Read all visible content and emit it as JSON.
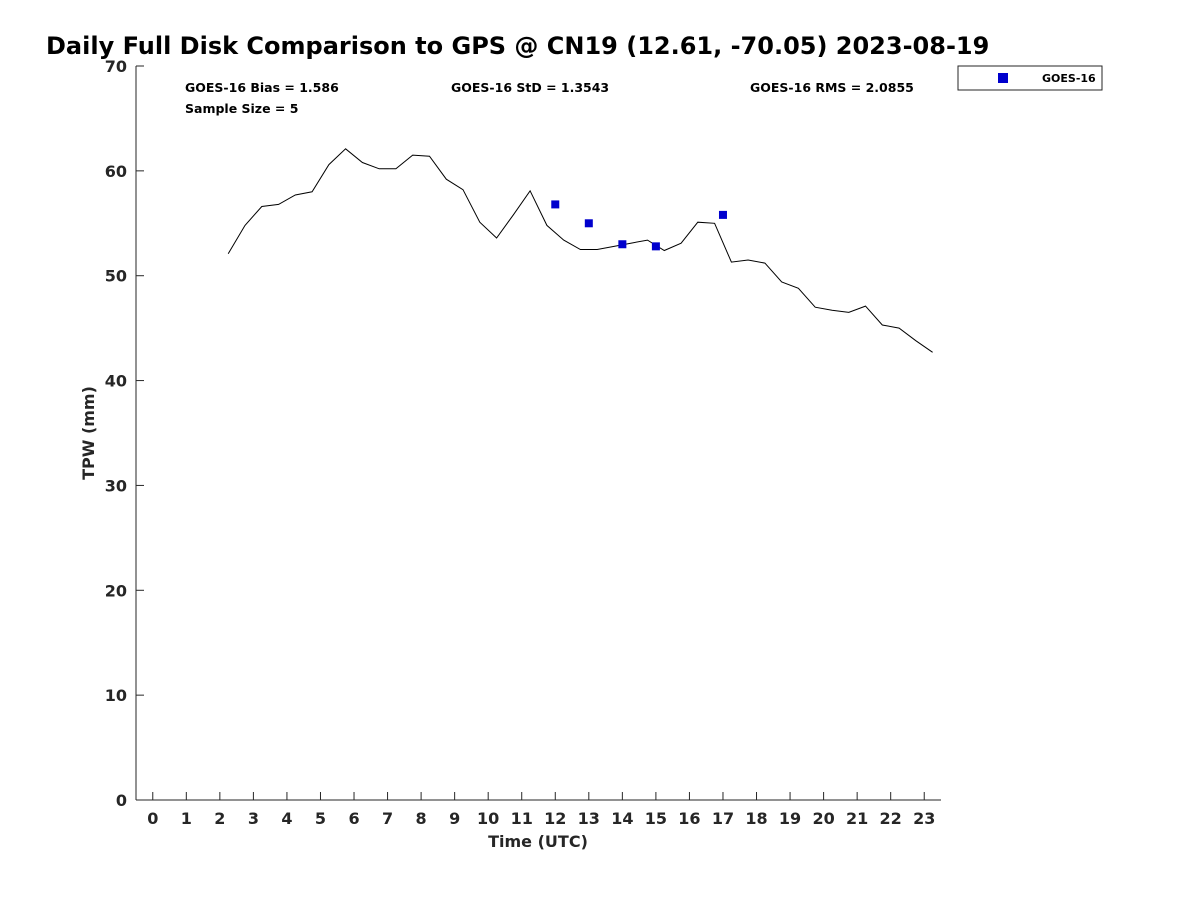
{
  "chart_data": {
    "type": "line",
    "title": "Daily Full Disk Comparison to GPS @ CN19 (12.61, -70.05) 2023-08-19",
    "xlabel": "Time (UTC)",
    "ylabel": "TPW (mm)",
    "xlim": [
      -0.5,
      23.5
    ],
    "ylim": [
      0,
      70
    ],
    "xticks": [
      0,
      1,
      2,
      3,
      4,
      5,
      6,
      7,
      8,
      9,
      10,
      11,
      12,
      13,
      14,
      15,
      16,
      17,
      18,
      19,
      20,
      21,
      22,
      23
    ],
    "yticks": [
      0,
      10,
      20,
      30,
      40,
      50,
      60,
      70
    ],
    "grid": false,
    "legend_position": "top-right",
    "stats": {
      "bias": "GOES-16 Bias = 1.586",
      "std": "GOES-16 StD = 1.3543",
      "rms": "GOES-16 RMS = 2.0855",
      "sample": "Sample Size = 5"
    },
    "series": [
      {
        "kind": "line",
        "color": "#000000",
        "x": [
          2.25,
          2.75,
          3.25,
          3.75,
          4.25,
          4.75,
          5.25,
          5.75,
          6.25,
          6.75,
          7.25,
          7.75,
          8.25,
          8.75,
          9.25,
          9.75,
          10.25,
          10.75,
          11.25,
          11.75,
          12.25,
          12.75,
          13.25,
          13.75,
          14.25,
          14.75,
          15.25,
          15.75,
          16.25,
          16.75,
          17.25,
          17.75,
          18.25,
          18.75,
          19.25,
          19.75,
          20.25,
          20.75,
          21.25,
          21.75,
          22.25,
          22.75,
          23.25
        ],
        "y": [
          52.1,
          54.8,
          56.6,
          56.8,
          57.7,
          58.0,
          60.6,
          62.1,
          60.8,
          60.2,
          60.2,
          61.5,
          61.4,
          59.2,
          58.2,
          55.1,
          53.6,
          55.8,
          58.1,
          54.8,
          53.4,
          52.5,
          52.5,
          52.8,
          53.1,
          53.4,
          52.4,
          53.1,
          55.1,
          55.0,
          51.3,
          51.5,
          51.2,
          49.4,
          48.8,
          47.0,
          46.7,
          46.5,
          47.1,
          45.3,
          45.0,
          43.8,
          42.7
        ]
      },
      {
        "kind": "scatter",
        "name": "GOES-16",
        "color": "#0000cd",
        "x": [
          12,
          13,
          14,
          15,
          17
        ],
        "y": [
          56.8,
          55.0,
          53.0,
          52.8,
          55.8
        ]
      }
    ]
  }
}
